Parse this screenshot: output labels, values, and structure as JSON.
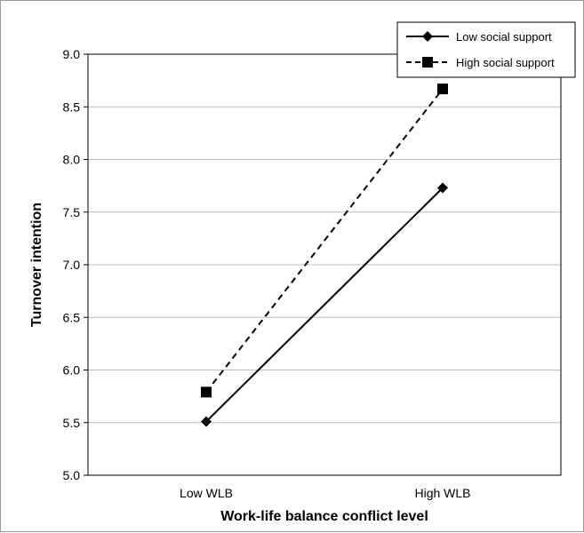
{
  "chart_data": {
    "type": "line",
    "title": "",
    "xlabel": "Work-life balance conflict level",
    "ylabel": "Turnover intention",
    "categories": [
      "Low WLB",
      "High WLB"
    ],
    "ylim": [
      5.0,
      9.0
    ],
    "yticks": [
      "5.0",
      "5.5",
      "6.0",
      "6.5",
      "7.0",
      "7.5",
      "8.0",
      "8.5",
      "9.0"
    ],
    "grid": true,
    "legend_position": "top-right",
    "series": [
      {
        "name": "Low social support",
        "values": [
          5.51,
          7.73
        ],
        "marker": "diamond",
        "line_style": "solid",
        "color": "#000000"
      },
      {
        "name": "High social support",
        "values": [
          5.79,
          8.67
        ],
        "marker": "square",
        "line_style": "dashed",
        "color": "#000000"
      }
    ]
  }
}
